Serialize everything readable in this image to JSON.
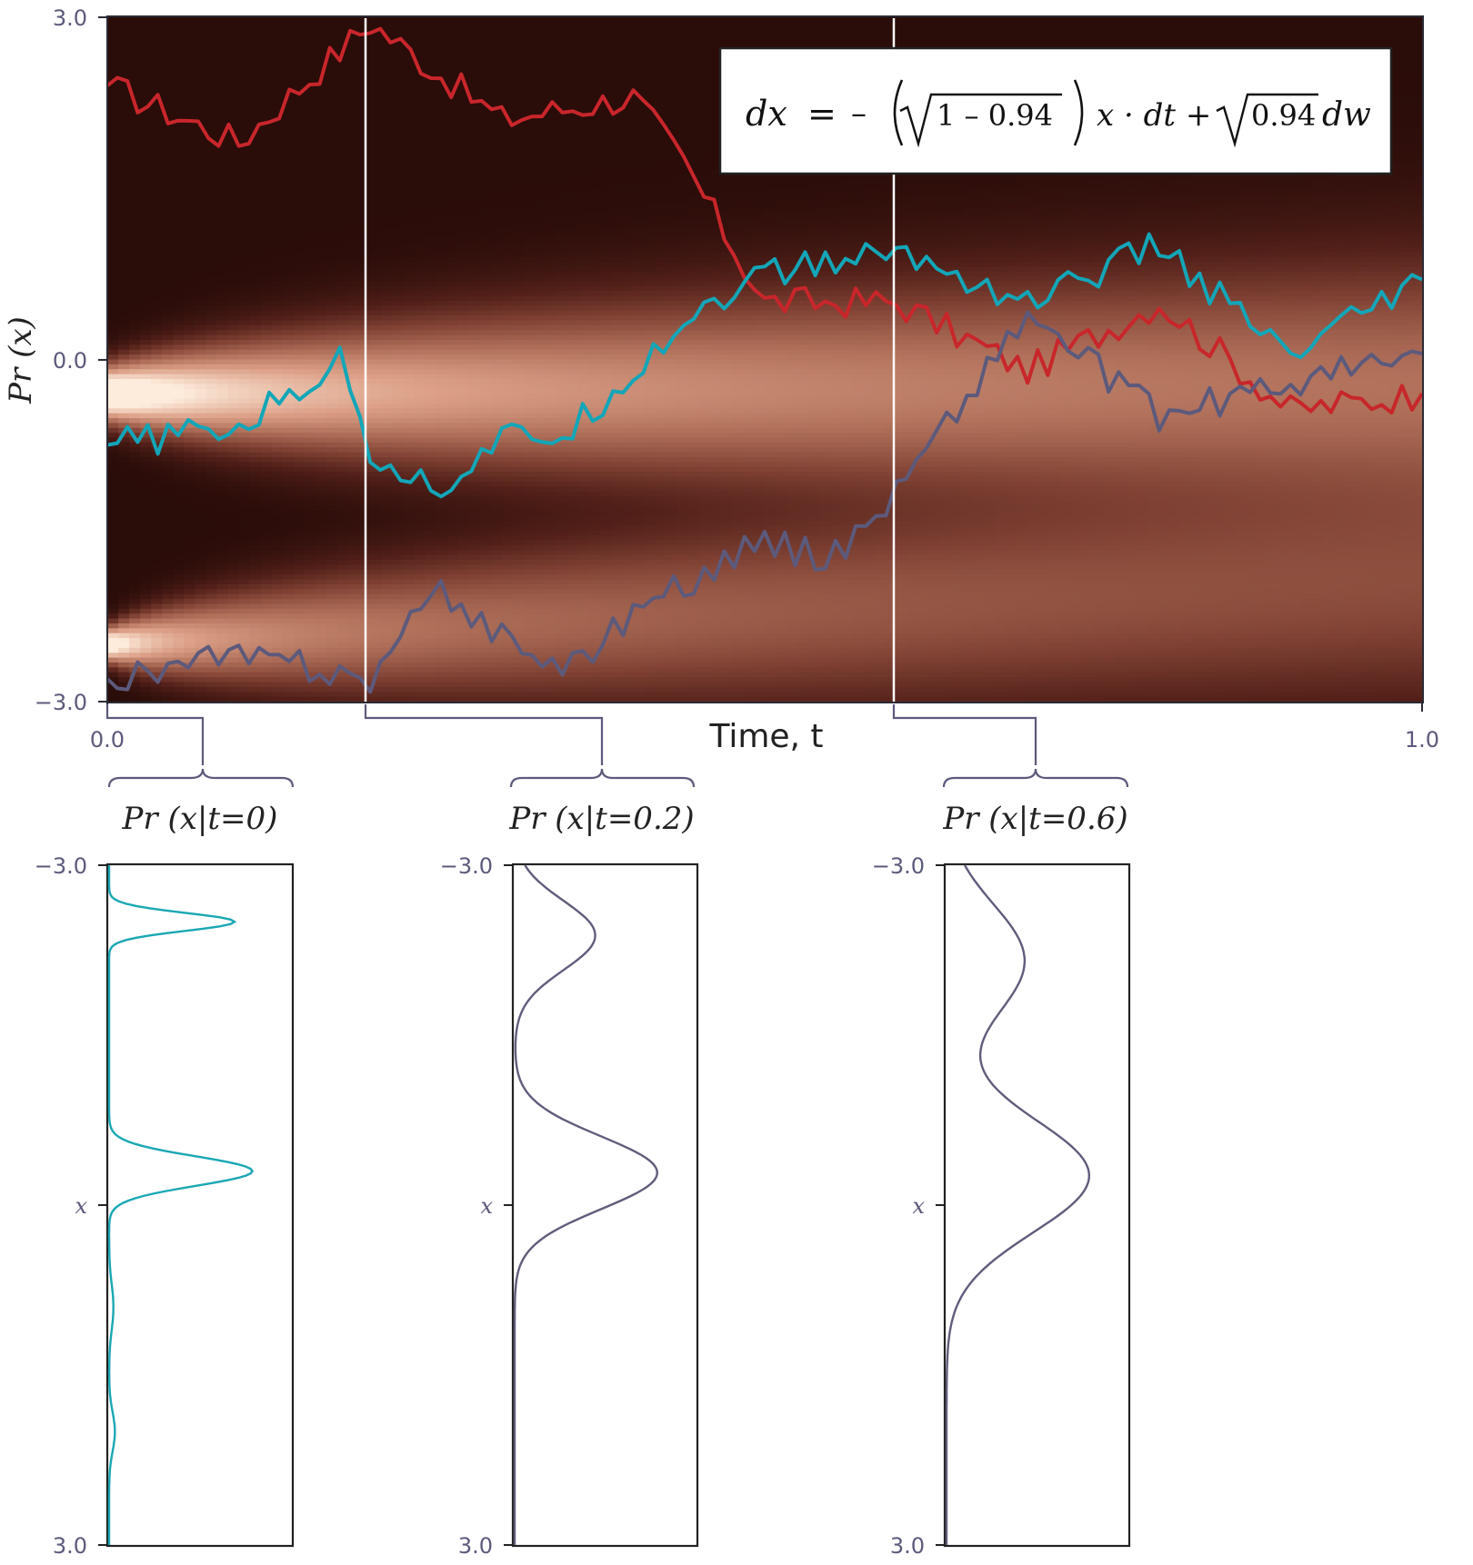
{
  "colors": {
    "red": "#c8262b",
    "cyan": "#13a6b8",
    "slate": "#5c5a7c",
    "heat_dark": "#2a0c09",
    "heat_light": "#fde9d8",
    "panel_curve_1": "#1aa7b3",
    "panel_curve_2": "#5f5d7c",
    "panel_curve_3": "#5f5d7c"
  },
  "main": {
    "equation": {
      "lhs": "dx",
      "eq": "=",
      "minus": "–",
      "sqrt1": "1 – 0.94",
      "mid": "x · dt +",
      "sqrt2": "0.94",
      "tail": "dw"
    },
    "ylabel": "Pr (x)",
    "xlabel": "Time, t",
    "y_ticks": [
      "3.0",
      "0.0",
      "−3.0"
    ],
    "x_ticks": [
      "0.0",
      "1.0"
    ]
  },
  "panels": [
    {
      "title": "Pr (x|t=0)",
      "ticks": [
        "−3.0",
        "x",
        "3.0"
      ]
    },
    {
      "title": "Pr (x|t=0.2)",
      "ticks": [
        "−3.0",
        "x",
        "3.0"
      ]
    },
    {
      "title": "Pr (x|t=0.6)",
      "ticks": [
        "−3.0",
        "x",
        "3.0"
      ]
    }
  ],
  "chart_data": [
    {
      "type": "heatmap",
      "xlabel": "Time, t",
      "ylabel": "Pr (x)",
      "xlim": [
        0,
        1
      ],
      "ylim": [
        -3,
        3
      ],
      "vertical_markers_t": [
        0.2,
        0.6
      ],
      "initial_modes": [
        {
          "x": -0.3,
          "weight": 0.65,
          "sd": 0.13
        },
        {
          "x": -2.5,
          "weight": 0.35,
          "sd": 0.08
        }
      ],
      "decay_rate": 0.245,
      "noise_var": 0.94,
      "series": [
        {
          "color_key": "red",
          "t": [
            0,
            0.1,
            0.2,
            0.3,
            0.4,
            0.44,
            0.5,
            0.6,
            0.7,
            0.8,
            0.9,
            1.0
          ],
          "values": [
            2.4,
            1.9,
            2.95,
            2.1,
            2.3,
            1.7,
            0.5,
            0.5,
            -0.1,
            0.5,
            -0.45,
            -0.3
          ]
        },
        {
          "color_key": "cyan",
          "t": [
            0,
            0.1,
            0.18,
            0.2,
            0.25,
            0.3,
            0.35,
            0.4,
            0.45,
            0.5,
            0.6,
            0.7,
            0.8,
            0.9,
            1.0
          ],
          "values": [
            -0.75,
            -0.6,
            0.0,
            -0.8,
            -1.15,
            -0.7,
            -0.65,
            -0.1,
            0.45,
            0.75,
            0.95,
            0.5,
            1.0,
            0.0,
            0.7
          ]
        },
        {
          "color_key": "slate",
          "t": [
            0,
            0.1,
            0.2,
            0.25,
            0.3,
            0.35,
            0.4,
            0.45,
            0.5,
            0.55,
            0.6,
            0.7,
            0.8,
            0.9,
            1.0
          ],
          "values": [
            -2.8,
            -2.6,
            -2.8,
            -2.05,
            -2.4,
            -2.75,
            -2.2,
            -1.9,
            -1.6,
            -1.75,
            -1.15,
            0.4,
            -0.5,
            -0.2,
            0.05
          ]
        }
      ]
    },
    {
      "type": "line",
      "title": "Pr (x|t=0)",
      "ylim": [
        -3,
        3
      ],
      "t": 0
    },
    {
      "type": "line",
      "title": "Pr (x|t=0.2)",
      "ylim": [
        -3,
        3
      ],
      "t": 0.2
    },
    {
      "type": "line",
      "title": "Pr (x|t=0.6)",
      "ylim": [
        -3,
        3
      ],
      "t": 0.6
    }
  ]
}
